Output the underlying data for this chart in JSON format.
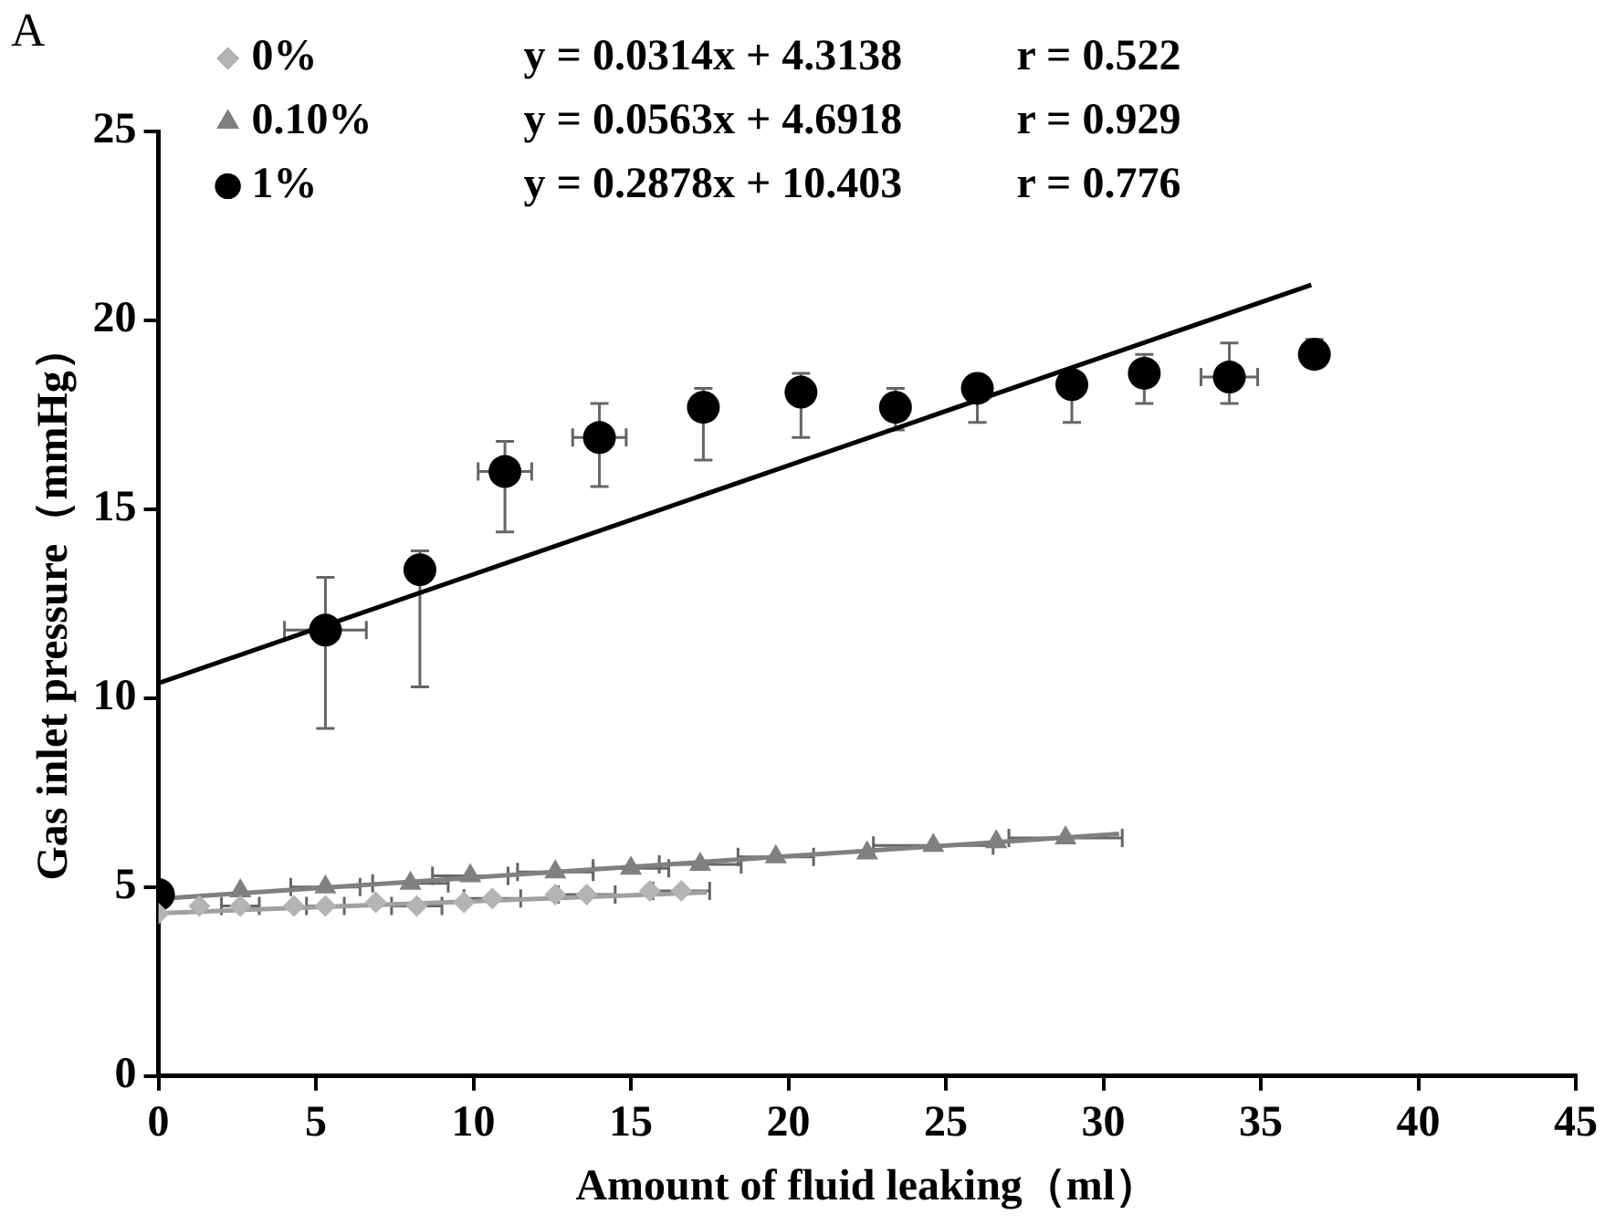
{
  "chart_data": {
    "type": "scatter",
    "xlabel": "Amount of fluid leaking（ml）",
    "ylabel": "Gas inlet pressure（mmHg）",
    "xlim": [
      0,
      45
    ],
    "xticks": [
      0,
      5,
      10,
      15,
      20,
      25,
      30,
      35,
      40,
      45
    ],
    "ylim": [
      0,
      25
    ],
    "yticks": [
      0,
      5,
      10,
      15,
      20,
      25
    ],
    "grid": false,
    "legend": "top left",
    "annotations": [
      "A",
      "y = 0.0314x + 4.3138",
      "r = 0.522",
      "y = 0.0563x + 4.6918",
      "r = 0.929",
      "y = 0.2878x + 10.403",
      "r = 0.776"
    ],
    "series": [
      {
        "name": "0%",
        "marker": "diamond",
        "color": "#b4b4b4",
        "x": [
          0,
          1.3,
          2.6,
          4.3,
          5.3,
          6.9,
          8.2,
          9.7,
          10.6,
          12.6,
          13.6,
          15.6,
          16.6
        ],
        "values": [
          4.3,
          4.5,
          4.5,
          4.5,
          4.5,
          4.6,
          4.5,
          4.6,
          4.7,
          4.8,
          4.8,
          4.9,
          4.9
        ],
        "xerrors": [
          null,
          null,
          0.6,
          null,
          0.6,
          null,
          0.8,
          null,
          0.9,
          null,
          0.9,
          null,
          0.9
        ]
      },
      {
        "name": "0.10%",
        "marker": "triangle",
        "color": "#808080",
        "x": [
          2.6,
          5.3,
          8.0,
          9.9,
          12.6,
          15.0,
          17.2,
          19.6,
          22.5,
          24.6,
          26.6,
          28.8
        ],
        "values": [
          4.9,
          5.0,
          5.1,
          5.3,
          5.4,
          5.5,
          5.6,
          5.8,
          5.9,
          6.1,
          6.2,
          6.3
        ],
        "xerrors": [
          null,
          1.1,
          1.2,
          1.2,
          1.2,
          1.2,
          1.3,
          1.2,
          null,
          1.9,
          null,
          1.8
        ]
      },
      {
        "name": "1%",
        "marker": "circle",
        "color": "#000000",
        "x": [
          0,
          5.3,
          8.3,
          11.0,
          14.0,
          17.3,
          20.4,
          23.4,
          26.0,
          29.0,
          31.3,
          34.0,
          36.7
        ],
        "values": [
          4.8,
          11.8,
          13.4,
          16.0,
          16.9,
          17.7,
          18.1,
          17.7,
          18.2,
          18.3,
          18.6,
          18.5,
          19.1
        ],
        "errors": [
          null,
          [
            9.2,
            13.2
          ],
          [
            10.3,
            13.9
          ],
          [
            14.4,
            16.8
          ],
          [
            15.6,
            17.8
          ],
          [
            16.3,
            18.2
          ],
          [
            16.9,
            18.6
          ],
          [
            17.1,
            18.2
          ],
          [
            17.3,
            18.5
          ],
          [
            17.3,
            18.3
          ],
          [
            17.8,
            19.1
          ],
          [
            17.8,
            19.4
          ],
          [
            18.8,
            19.5
          ]
        ],
        "xerrors": [
          null,
          1.3,
          null,
          0.85,
          0.85,
          null,
          null,
          null,
          null,
          null,
          null,
          0.9,
          null
        ]
      },
      {
        "type": "line",
        "color": "#a0a0a0",
        "x": [
          0,
          17.4
        ],
        "values": [
          4.31,
          4.86
        ]
      },
      {
        "type": "line",
        "color": "#808080",
        "x": [
          0,
          30.5
        ],
        "values": [
          4.69,
          6.41
        ]
      },
      {
        "type": "line",
        "color": "#000000",
        "x": [
          0,
          36.6
        ],
        "values": [
          10.4,
          20.94
        ]
      }
    ]
  }
}
